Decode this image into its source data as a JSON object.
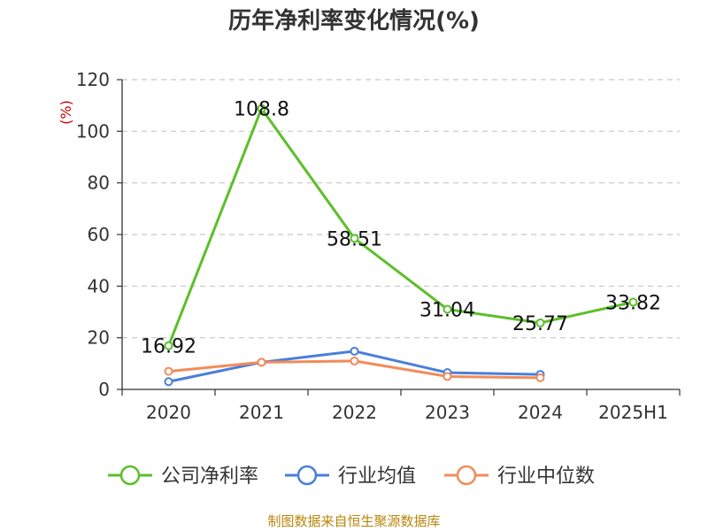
{
  "chart_data": {
    "type": "line",
    "title": "历年净利率变化情况(%)",
    "ylabel": "(%)",
    "categories": [
      "2020",
      "2021",
      "2022",
      "2023",
      "2024",
      "2025H1"
    ],
    "yticks": [
      "0",
      "20",
      "40",
      "60",
      "80",
      "100",
      "120"
    ],
    "ylim": [
      0,
      120
    ],
    "grid": true,
    "legend_position": "bottom",
    "series": [
      {
        "name": "公司净利率",
        "color": "#5cbf2a",
        "values": [
          16.92,
          108.8,
          58.51,
          31.04,
          25.77,
          33.82
        ],
        "labels": [
          "16.92",
          "108.8",
          "58.51",
          "31.04",
          "25.77",
          "33.82"
        ]
      },
      {
        "name": "行业均值",
        "color": "#4a7fd9",
        "values": [
          3.0,
          10.5,
          14.8,
          6.5,
          5.8,
          null
        ]
      },
      {
        "name": "行业中位数",
        "color": "#f28c5a",
        "values": [
          7.0,
          10.5,
          11.0,
          5.0,
          4.5,
          null
        ]
      }
    ]
  },
  "footer": {
    "source": "制图数据来自恒生聚源数据库"
  }
}
